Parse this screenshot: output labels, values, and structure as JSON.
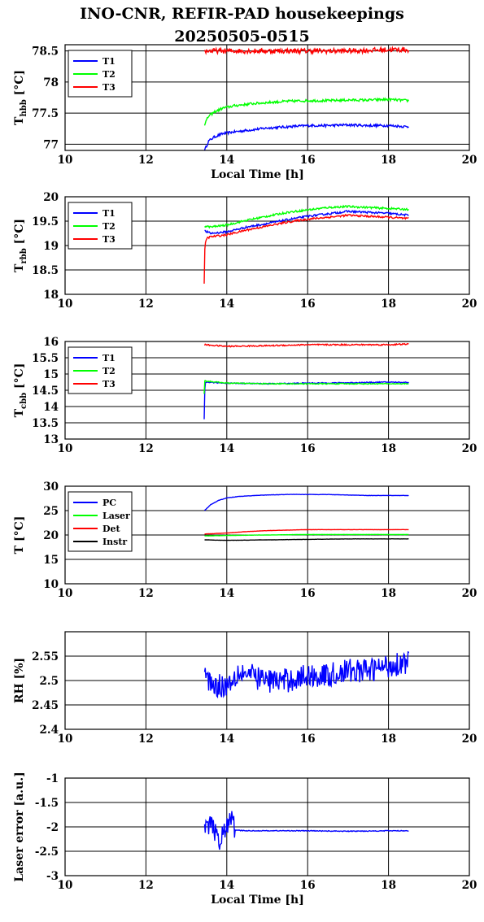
{
  "title_line1": "INO-CNR, REFIR-PAD housekeepings",
  "title_line2": "20250505-0515",
  "chart_data": [
    {
      "type": "line",
      "ylabel_main": "T",
      "ylabel_sub": "hbb",
      "ylabel_unit": " [°C]",
      "xlabel": "Local Time [h]",
      "xlim": [
        10,
        20
      ],
      "xticks": [
        10,
        12,
        14,
        16,
        18,
        20
      ],
      "ylim": [
        76.9,
        78.6
      ],
      "yticks": [
        77,
        77.5,
        78,
        78.5
      ],
      "ytick_labels": [
        "77",
        "77.5",
        "78",
        "78.5"
      ],
      "legend": "top-left",
      "grid": true,
      "series": [
        {
          "name": "T1",
          "color": "#0000ff",
          "x": [
            13.45,
            13.55,
            13.7,
            13.9,
            14.2,
            14.6,
            15.0,
            15.5,
            16.0,
            16.5,
            17.0,
            17.5,
            18.0,
            18.5
          ],
          "y": [
            76.9,
            77.05,
            77.12,
            77.17,
            77.2,
            77.23,
            77.26,
            77.28,
            77.3,
            77.3,
            77.31,
            77.3,
            77.3,
            77.28
          ],
          "noise": 0.02
        },
        {
          "name": "T2",
          "color": "#00ff00",
          "x": [
            13.45,
            13.55,
            13.7,
            13.9,
            14.2,
            14.6,
            15.0,
            15.5,
            16.0,
            16.5,
            17.0,
            17.5,
            18.0,
            18.5
          ],
          "y": [
            77.32,
            77.45,
            77.52,
            77.58,
            77.62,
            77.65,
            77.67,
            77.69,
            77.7,
            77.7,
            77.71,
            77.71,
            77.72,
            77.7
          ],
          "noise": 0.02
        },
        {
          "name": "T3",
          "color": "#ff0000",
          "x": [
            13.45,
            14.0,
            15.0,
            16.0,
            17.0,
            18.0,
            18.5
          ],
          "y": [
            78.5,
            78.5,
            78.5,
            78.5,
            78.5,
            78.52,
            78.52
          ],
          "noise": 0.04
        }
      ]
    },
    {
      "type": "line",
      "ylabel_main": "T",
      "ylabel_sub": "rbb",
      "ylabel_unit": " [°C]",
      "xlabel": "",
      "xlim": [
        10,
        20
      ],
      "xticks": [
        10,
        12,
        14,
        16,
        18,
        20
      ],
      "ylim": [
        18,
        20
      ],
      "yticks": [
        18,
        18.5,
        19,
        19.5,
        20
      ],
      "ytick_labels": [
        "18",
        "18.5",
        "19",
        "19.5",
        "20"
      ],
      "legend": "top-left",
      "grid": true,
      "series": [
        {
          "name": "T1",
          "color": "#0000ff",
          "x": [
            13.45,
            13.6,
            14.0,
            14.5,
            15.0,
            15.5,
            16.0,
            16.5,
            17.0,
            17.5,
            18.0,
            18.5
          ],
          "y": [
            19.3,
            19.25,
            19.28,
            19.38,
            19.45,
            19.53,
            19.6,
            19.65,
            19.7,
            19.68,
            19.66,
            19.62
          ],
          "noise": 0.02
        },
        {
          "name": "T2",
          "color": "#00ff00",
          "x": [
            13.45,
            13.6,
            14.0,
            14.5,
            15.0,
            15.5,
            16.0,
            16.5,
            17.0,
            17.5,
            18.0,
            18.5
          ],
          "y": [
            19.4,
            19.38,
            19.42,
            19.52,
            19.6,
            19.68,
            19.73,
            19.78,
            19.8,
            19.78,
            19.76,
            19.74
          ],
          "noise": 0.02
        },
        {
          "name": "T3",
          "color": "#ff0000",
          "x": [
            13.44,
            13.45,
            13.46,
            13.5,
            13.6,
            14.0,
            14.5,
            15.0,
            15.5,
            16.0,
            16.5,
            17.0,
            17.5,
            18.0,
            18.5
          ],
          "y": [
            18.2,
            18.7,
            19.0,
            19.15,
            19.18,
            19.22,
            19.32,
            19.4,
            19.48,
            19.54,
            19.58,
            19.62,
            19.6,
            19.58,
            19.55
          ],
          "noise": 0.02
        }
      ]
    },
    {
      "type": "line",
      "ylabel_main": "T",
      "ylabel_sub": "cbb",
      "ylabel_unit": " [°C]",
      "xlabel": "",
      "xlim": [
        10,
        20
      ],
      "xticks": [
        10,
        12,
        14,
        16,
        18,
        20
      ],
      "ylim": [
        13,
        16
      ],
      "yticks": [
        13,
        13.5,
        14,
        14.5,
        15,
        15.5,
        16
      ],
      "ytick_labels": [
        "13",
        "13.5",
        "14",
        "14.5",
        "15",
        "15.5",
        "16"
      ],
      "legend": "top-left",
      "grid": true,
      "series": [
        {
          "name": "T1",
          "color": "#0000ff",
          "x": [
            13.44,
            13.45,
            13.46,
            13.5,
            14.0,
            15.0,
            16.0,
            17.0,
            18.0,
            18.5
          ],
          "y": [
            13.6,
            14.2,
            14.7,
            14.75,
            14.72,
            14.7,
            14.72,
            14.73,
            14.75,
            14.74
          ],
          "noise": 0.015
        },
        {
          "name": "T2",
          "color": "#00ff00",
          "x": [
            13.44,
            13.45,
            13.5,
            14.0,
            15.0,
            16.0,
            17.0,
            18.0,
            18.5
          ],
          "y": [
            14.4,
            14.8,
            14.78,
            14.72,
            14.7,
            14.7,
            14.7,
            14.7,
            14.7
          ],
          "noise": 0.015
        },
        {
          "name": "T3",
          "color": "#ff0000",
          "x": [
            13.45,
            14.0,
            15.0,
            16.0,
            17.0,
            18.0,
            18.5
          ],
          "y": [
            15.9,
            15.85,
            15.87,
            15.9,
            15.9,
            15.9,
            15.92
          ],
          "noise": 0.02
        }
      ]
    },
    {
      "type": "line",
      "ylabel_main": "T [°C]",
      "ylabel_sub": "",
      "ylabel_unit": "",
      "xlabel": "",
      "xlim": [
        10,
        20
      ],
      "xticks": [
        10,
        12,
        14,
        16,
        18,
        20
      ],
      "ylim": [
        10,
        30
      ],
      "yticks": [
        10,
        15,
        20,
        25,
        30
      ],
      "ytick_labels": [
        "10",
        "15",
        "20",
        "25",
        "30"
      ],
      "legend": "top-left",
      "grid": true,
      "series": [
        {
          "name": "PC",
          "color": "#0000ff",
          "x": [
            13.45,
            13.6,
            13.8,
            14.0,
            14.3,
            14.7,
            15.0,
            15.5,
            16.0,
            16.5,
            17.0,
            17.5,
            18.0,
            18.5
          ],
          "y": [
            25.0,
            26.2,
            27.1,
            27.6,
            27.9,
            28.1,
            28.2,
            28.3,
            28.3,
            28.3,
            28.2,
            28.1,
            28.1,
            28.1
          ],
          "noise": 0.03
        },
        {
          "name": "Laser",
          "color": "#00ff00",
          "x": [
            13.45,
            14.0,
            15.0,
            16.0,
            17.0,
            18.0,
            18.5
          ],
          "y": [
            19.8,
            19.9,
            20.0,
            20.1,
            20.1,
            20.1,
            20.1
          ],
          "noise": 0.02
        },
        {
          "name": "Det",
          "color": "#ff0000",
          "x": [
            13.45,
            14.0,
            14.5,
            15.0,
            15.5,
            16.0,
            17.0,
            18.0,
            18.5
          ],
          "y": [
            20.2,
            20.4,
            20.7,
            20.9,
            21.0,
            21.1,
            21.1,
            21.1,
            21.1
          ],
          "noise": 0.02
        },
        {
          "name": "Instr",
          "color": "#000000",
          "x": [
            13.45,
            14.0,
            15.0,
            16.0,
            17.0,
            18.0,
            18.5
          ],
          "y": [
            19.0,
            18.9,
            19.0,
            19.1,
            19.2,
            19.2,
            19.2
          ],
          "noise": 0.02
        }
      ]
    },
    {
      "type": "line",
      "ylabel_main": "RH [%]",
      "ylabel_sub": "",
      "ylabel_unit": "",
      "xlabel": "",
      "xlim": [
        10,
        20
      ],
      "xticks": [
        10,
        12,
        14,
        16,
        18,
        20
      ],
      "ylim": [
        2.4,
        2.6
      ],
      "yticks": [
        2.4,
        2.45,
        2.5,
        2.55
      ],
      "ytick_labels": [
        "2.4",
        "2.45",
        "2.5",
        "2.55"
      ],
      "legend": "none",
      "grid": true,
      "series": [
        {
          "name": "",
          "color": "#0000ff",
          "x": [
            13.45,
            13.7,
            14.0,
            14.3,
            14.6,
            15.0,
            15.5,
            16.0,
            16.5,
            17.0,
            17.5,
            18.0,
            18.5
          ],
          "y": [
            2.51,
            2.49,
            2.49,
            2.52,
            2.51,
            2.5,
            2.5,
            2.51,
            2.51,
            2.52,
            2.52,
            2.53,
            2.54
          ],
          "noise": 0.025
        }
      ]
    },
    {
      "type": "line",
      "ylabel_main": "Laser error [a.u.]",
      "ylabel_sub": "",
      "ylabel_unit": "",
      "xlabel": "Local Time [h]",
      "xlim": [
        10,
        20
      ],
      "xticks": [
        10,
        12,
        14,
        16,
        18,
        20
      ],
      "ylim": [
        -3,
        -1
      ],
      "yticks": [
        -3,
        -2.5,
        -2,
        -1.5,
        -1
      ],
      "ytick_labels": [
        "-3",
        "-2.5",
        "-2",
        "-1.5",
        "-1"
      ],
      "legend": "none",
      "grid": true,
      "series": [
        {
          "name": "",
          "color": "#0000ff",
          "x": [
            13.45,
            13.6,
            13.8,
            14.0,
            14.15,
            14.2,
            14.5,
            15.0,
            16.0,
            17.0,
            18.0,
            18.5
          ],
          "y": [
            -2.1,
            -1.9,
            -2.3,
            -2.0,
            -1.8,
            -2.07,
            -2.08,
            -2.08,
            -2.08,
            -2.09,
            -2.08,
            -2.08
          ],
          "noise": 0.2,
          "noise_until": 14.2
        }
      ]
    }
  ]
}
